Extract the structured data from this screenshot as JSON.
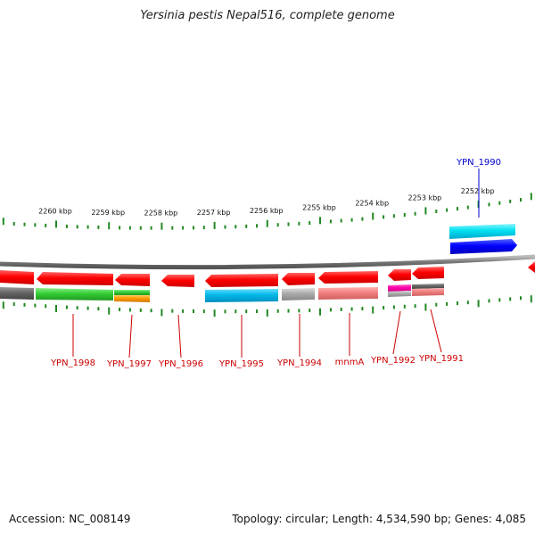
{
  "title": "Yersinia pestis Nepal516, complete genome",
  "footer": {
    "accession_label": "Accession:",
    "accession": "NC_008149",
    "topology_label": "Topology:",
    "topology": "circular",
    "length_label": "Length:",
    "length": "4,534,590 bp",
    "genes_label": "Genes:",
    "genes": "4,085"
  },
  "ticks": [
    {
      "label": "2260 kbp"
    },
    {
      "label": "2259 kbp"
    },
    {
      "label": "2258 kbp"
    },
    {
      "label": "2257 kbp"
    },
    {
      "label": "2256 kbp"
    },
    {
      "label": "2255 kbp"
    },
    {
      "label": "2254 kbp"
    },
    {
      "label": "2253 kbp"
    },
    {
      "label": "2252 kbp"
    }
  ],
  "genes": [
    {
      "name": "YPN_1998",
      "strand": "reverse",
      "color": "#cc0000"
    },
    {
      "name": "YPN_1997",
      "strand": "reverse",
      "color": "#cc0000"
    },
    {
      "name": "YPN_1996",
      "strand": "reverse",
      "color": "#cc0000"
    },
    {
      "name": "YPN_1995",
      "strand": "reverse",
      "color": "#cc0000"
    },
    {
      "name": "YPN_1994",
      "strand": "reverse",
      "color": "#cc0000"
    },
    {
      "name": "mnmA",
      "strand": "reverse",
      "color": "#cc0000"
    },
    {
      "name": "YPN_1992",
      "strand": "reverse",
      "color": "#cc0000"
    },
    {
      "name": "YPN_1991",
      "strand": "reverse",
      "color": "#cc0000"
    },
    {
      "name": "YPN_1990",
      "strand": "forward",
      "color": "#0000cc"
    }
  ],
  "colors": {
    "cds_red": "#ff0000",
    "cds_blue": "#0000ff",
    "cyan": "#00ccee",
    "green": "#33cc33",
    "orange": "#ff9900",
    "gray": "#888888",
    "pink": "#f08080",
    "magenta": "#ff00aa",
    "tick_green": "#228822"
  }
}
